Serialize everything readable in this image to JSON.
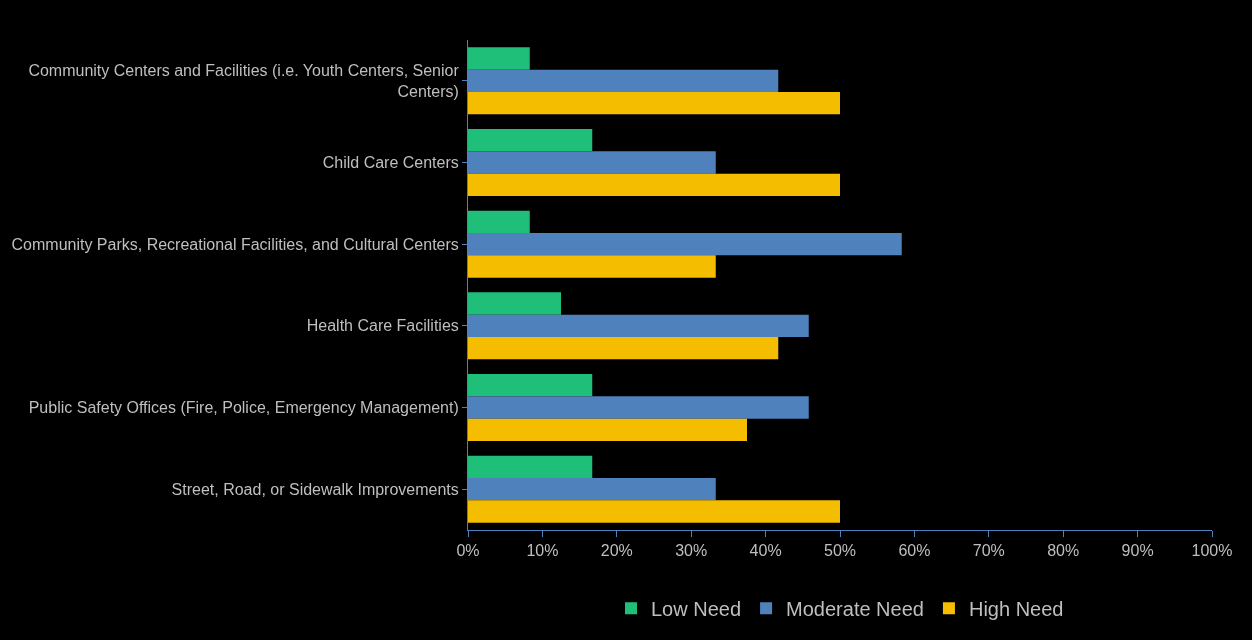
{
  "chart_data": {
    "type": "bar",
    "orientation": "horizontal",
    "categories": [
      "Community Centers and Facilities (i.e. Youth Centers, Senior Centers)",
      "Child Care Centers",
      "Community Parks, Recreational Facilities, and Cultural Centers",
      "Health Care Facilities",
      "Public Safety Offices (Fire, Police, Emergency Management)",
      "Street, Road, or Sidewalk Improvements"
    ],
    "series": [
      {
        "name": "Low Need",
        "color": "#1fbf7a",
        "values": [
          8.3,
          16.7,
          8.3,
          12.5,
          16.7,
          16.7
        ]
      },
      {
        "name": "Moderate Need",
        "color": "#4f81bd",
        "values": [
          41.7,
          33.3,
          58.3,
          45.8,
          45.8,
          33.3
        ]
      },
      {
        "name": "High Need",
        "color": "#f5bd00",
        "values": [
          50,
          50,
          33.3,
          41.7,
          37.5,
          50
        ]
      }
    ],
    "xlim": [
      0,
      100
    ],
    "xticks": [
      {
        "value": 0,
        "label": "0%"
      },
      {
        "value": 10,
        "label": "10%"
      },
      {
        "value": 20,
        "label": "20%"
      },
      {
        "value": 30,
        "label": "30%"
      },
      {
        "value": 40,
        "label": "40%"
      },
      {
        "value": 50,
        "label": "50%"
      },
      {
        "value": 60,
        "label": "60%"
      },
      {
        "value": 70,
        "label": "70%"
      },
      {
        "value": 80,
        "label": "80%"
      },
      {
        "value": 90,
        "label": "90%"
      },
      {
        "value": 100,
        "label": "100%"
      }
    ],
    "grid": false,
    "legend": "bottom"
  }
}
